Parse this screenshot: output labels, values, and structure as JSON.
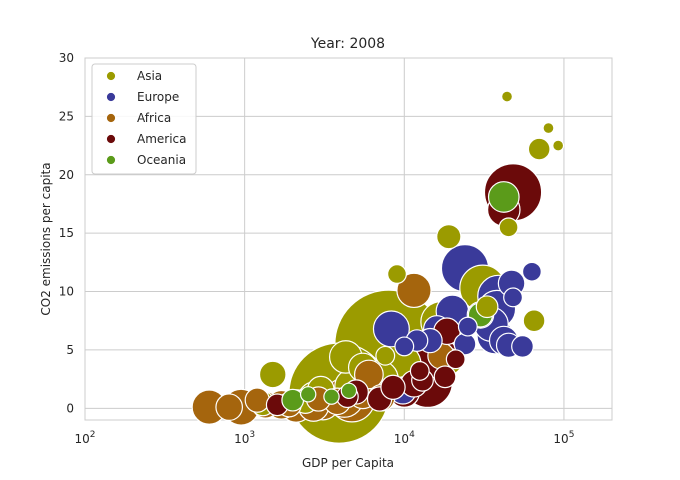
{
  "chart_data": {
    "type": "scatter",
    "title": "Year: 2008",
    "xlabel": "GDP per Capita",
    "ylabel": "CO2 emissions per capita",
    "xscale": "log",
    "xlim": [
      100,
      200000
    ],
    "ylim": [
      -1,
      30
    ],
    "x_ticks": [
      {
        "value": 100,
        "base": "10",
        "exp": "2"
      },
      {
        "value": 1000,
        "base": "10",
        "exp": "3"
      },
      {
        "value": 10000,
        "base": "10",
        "exp": "4"
      },
      {
        "value": 100000,
        "base": "10",
        "exp": "5"
      }
    ],
    "y_ticks": [
      "0",
      "5",
      "10",
      "15",
      "20",
      "25",
      "30"
    ],
    "grid": true,
    "legend_position": "top-left",
    "series": [
      {
        "name": "Asia",
        "color": "#9b9b00",
        "points": [
          {
            "x": 8000,
            "y": 5.5,
            "size": 1.0
          },
          {
            "x": 3900,
            "y": 1.3,
            "size": 0.86
          },
          {
            "x": 31000,
            "y": 10.3,
            "size": 0.18
          },
          {
            "x": 4300,
            "y": 4.4,
            "size": 0.09
          },
          {
            "x": 17000,
            "y": 7.4,
            "size": 0.14
          },
          {
            "x": 9500,
            "y": 3.8,
            "size": 0.14
          },
          {
            "x": 7000,
            "y": 2.5,
            "size": 0.12
          },
          {
            "x": 2800,
            "y": 0.7,
            "size": 0.12
          },
          {
            "x": 4700,
            "y": 1.9,
            "size": 0.1
          },
          {
            "x": 3000,
            "y": 1.6,
            "size": 0.06
          },
          {
            "x": 1500,
            "y": 2.9,
            "size": 0.06
          },
          {
            "x": 19000,
            "y": 14.7,
            "size": 0.05
          },
          {
            "x": 70000,
            "y": 22.2,
            "size": 0.04
          },
          {
            "x": 65000,
            "y": 7.5,
            "size": 0.04
          },
          {
            "x": 9000,
            "y": 11.5,
            "size": 0.03
          },
          {
            "x": 45000,
            "y": 15.5,
            "size": 0.03
          },
          {
            "x": 19000,
            "y": 4.0,
            "size": 0.06
          },
          {
            "x": 1300,
            "y": 0.4,
            "size": 0.05
          },
          {
            "x": 2400,
            "y": 0.6,
            "size": 0.05
          },
          {
            "x": 5500,
            "y": 3.5,
            "size": 0.07
          },
          {
            "x": 7600,
            "y": 4.5,
            "size": 0.03
          },
          {
            "x": 33000,
            "y": 8.7,
            "size": 0.04
          },
          {
            "x": 44000,
            "y": 26.7,
            "size": 0.01
          },
          {
            "x": 80000,
            "y": 24.0,
            "size": 0.01
          },
          {
            "x": 92000,
            "y": 22.5,
            "size": 0.01
          }
        ]
      },
      {
        "name": "Europe",
        "color": "#3a3a9a",
        "points": [
          {
            "x": 24000,
            "y": 12.0,
            "size": 0.19
          },
          {
            "x": 39000,
            "y": 9.6,
            "size": 0.15
          },
          {
            "x": 35000,
            "y": 7.2,
            "size": 0.1
          },
          {
            "x": 38000,
            "y": 8.5,
            "size": 0.12
          },
          {
            "x": 37000,
            "y": 6.2,
            "size": 0.11
          },
          {
            "x": 8300,
            "y": 6.8,
            "size": 0.11
          },
          {
            "x": 20000,
            "y": 8.3,
            "size": 0.09
          },
          {
            "x": 42000,
            "y": 5.8,
            "size": 0.07
          },
          {
            "x": 47000,
            "y": 10.7,
            "size": 0.06
          },
          {
            "x": 30000,
            "y": 8.0,
            "size": 0.06
          },
          {
            "x": 14500,
            "y": 5.8,
            "size": 0.05
          },
          {
            "x": 12000,
            "y": 5.8,
            "size": 0.04
          },
          {
            "x": 16000,
            "y": 6.8,
            "size": 0.06
          },
          {
            "x": 24000,
            "y": 5.5,
            "size": 0.04
          },
          {
            "x": 55000,
            "y": 5.3,
            "size": 0.04
          },
          {
            "x": 63000,
            "y": 11.7,
            "size": 0.03
          },
          {
            "x": 45000,
            "y": 5.4,
            "size": 0.05
          },
          {
            "x": 10000,
            "y": 5.3,
            "size": 0.03
          },
          {
            "x": 25000,
            "y": 7.0,
            "size": 0.03
          },
          {
            "x": 48000,
            "y": 9.5,
            "size": 0.03
          },
          {
            "x": 9800,
            "y": 1.5,
            "size": 0.06
          }
        ]
      },
      {
        "name": "Africa",
        "color": "#a5650d",
        "points": [
          {
            "x": 4700,
            "y": 0.8,
            "size": 0.18
          },
          {
            "x": 4200,
            "y": 0.9,
            "size": 0.13
          },
          {
            "x": 9000,
            "y": 2.1,
            "size": 0.15
          },
          {
            "x": 11500,
            "y": 10.1,
            "size": 0.1
          },
          {
            "x": 950,
            "y": 0.1,
            "size": 0.11
          },
          {
            "x": 600,
            "y": 0.1,
            "size": 0.1
          },
          {
            "x": 2100,
            "y": 0.2,
            "size": 0.09
          },
          {
            "x": 1700,
            "y": 0.3,
            "size": 0.07
          },
          {
            "x": 2700,
            "y": 0.2,
            "size": 0.08
          },
          {
            "x": 3100,
            "y": 0.4,
            "size": 0.09
          },
          {
            "x": 800,
            "y": 0.1,
            "size": 0.06
          },
          {
            "x": 1350,
            "y": 0.3,
            "size": 0.06
          },
          {
            "x": 1200,
            "y": 0.7,
            "size": 0.05
          },
          {
            "x": 5500,
            "y": 1.2,
            "size": 0.07
          },
          {
            "x": 6000,
            "y": 2.9,
            "size": 0.07
          },
          {
            "x": 3800,
            "y": 0.6,
            "size": 0.06
          },
          {
            "x": 2900,
            "y": 0.8,
            "size": 0.05
          },
          {
            "x": 7200,
            "y": 0.9,
            "size": 0.06
          },
          {
            "x": 1900,
            "y": 0.3,
            "size": 0.05
          },
          {
            "x": 17000,
            "y": 4.5,
            "size": 0.06
          }
        ]
      },
      {
        "name": "America",
        "color": "#6b0a0a",
        "points": [
          {
            "x": 48000,
            "y": 18.5,
            "size": 0.28
          },
          {
            "x": 14000,
            "y": 2.2,
            "size": 0.21
          },
          {
            "x": 16000,
            "y": 4.4,
            "size": 0.15
          },
          {
            "x": 42000,
            "y": 17.0,
            "size": 0.09
          },
          {
            "x": 18500,
            "y": 6.6,
            "size": 0.06
          },
          {
            "x": 10000,
            "y": 1.4,
            "size": 0.08
          },
          {
            "x": 11500,
            "y": 2.1,
            "size": 0.06
          },
          {
            "x": 7000,
            "y": 0.8,
            "size": 0.05
          },
          {
            "x": 5000,
            "y": 1.4,
            "size": 0.05
          },
          {
            "x": 8500,
            "y": 1.8,
            "size": 0.05
          },
          {
            "x": 1600,
            "y": 0.3,
            "size": 0.04
          },
          {
            "x": 4400,
            "y": 1.0,
            "size": 0.04
          },
          {
            "x": 13000,
            "y": 2.4,
            "size": 0.04
          },
          {
            "x": 18000,
            "y": 2.7,
            "size": 0.04
          },
          {
            "x": 12500,
            "y": 3.2,
            "size": 0.03
          },
          {
            "x": 21000,
            "y": 4.2,
            "size": 0.03
          }
        ]
      },
      {
        "name": "Oceania",
        "color": "#5b9b1a",
        "points": [
          {
            "x": 42000,
            "y": 18.1,
            "size": 0.08
          },
          {
            "x": 30000,
            "y": 8.0,
            "size": 0.05
          },
          {
            "x": 2000,
            "y": 0.7,
            "size": 0.04
          },
          {
            "x": 2500,
            "y": 1.2,
            "size": 0.02
          },
          {
            "x": 3500,
            "y": 1.0,
            "size": 0.02
          },
          {
            "x": 4500,
            "y": 1.5,
            "size": 0.02
          }
        ]
      }
    ]
  }
}
